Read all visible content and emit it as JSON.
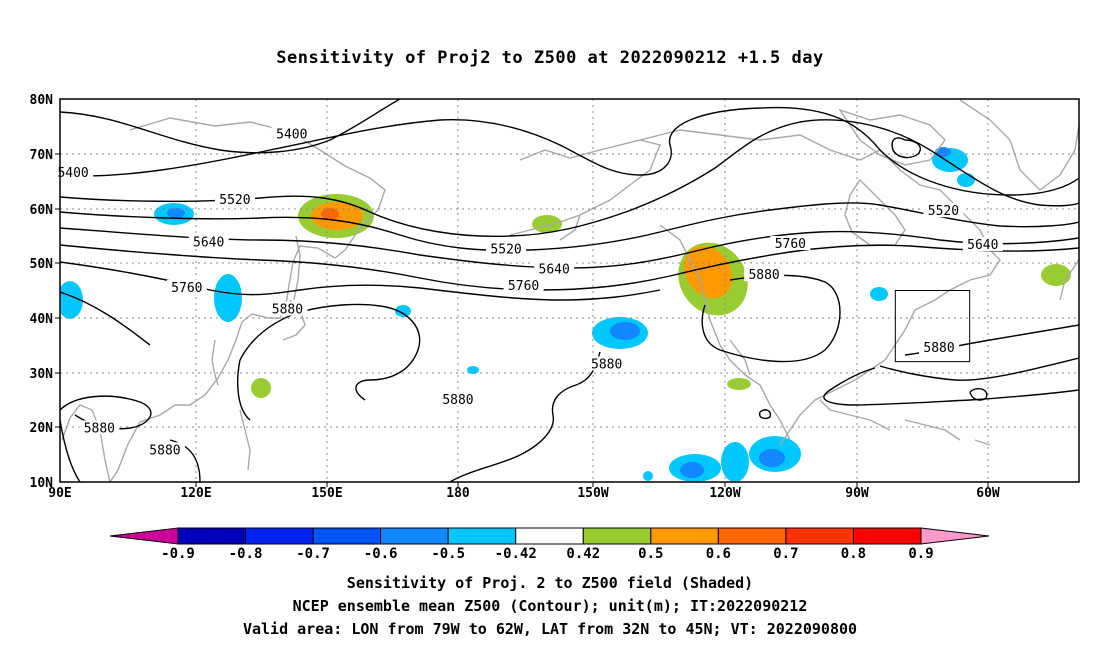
{
  "title": "Sensitivity of Proj2 to Z500 at 2022090212 +1.5 day",
  "map": {
    "lat_ticks": [
      "80N",
      "70N",
      "60N",
      "50N",
      "40N",
      "30N",
      "20N",
      "10N"
    ],
    "lon_ticks": [
      "90E",
      "120E",
      "150E",
      "180",
      "150W",
      "120W",
      "90W",
      "60W"
    ],
    "contour_labels": [
      {
        "text": "5400",
        "lon": 143,
        "lat": 73.5
      },
      {
        "text": "5400",
        "lon": 93,
        "lat": 66.5
      },
      {
        "text": "5520",
        "lon": 130,
        "lat": 61.5
      },
      {
        "text": "5520",
        "lon": 192,
        "lat": 52.5
      },
      {
        "text": "5520",
        "lon": 292,
        "lat": 59.5
      },
      {
        "text": "5640",
        "lon": 124,
        "lat": 53.8
      },
      {
        "text": "5640",
        "lon": 203,
        "lat": 48.8
      },
      {
        "text": "5640",
        "lon": 301,
        "lat": 53.3
      },
      {
        "text": "5760",
        "lon": 257,
        "lat": 53.5
      },
      {
        "text": "5760",
        "lon": 119,
        "lat": 45.5
      },
      {
        "text": "5760",
        "lon": 196,
        "lat": 45.8
      },
      {
        "text": "5880",
        "lon": 142,
        "lat": 41.5
      },
      {
        "text": "5880",
        "lon": 181,
        "lat": 25.0
      },
      {
        "text": "5880",
        "lon": 215,
        "lat": 31.5
      },
      {
        "text": "5880",
        "lon": 251,
        "lat": 47.8
      },
      {
        "text": "5880",
        "lon": 291,
        "lat": 34.5
      },
      {
        "text": "5880",
        "lon": 99,
        "lat": 19.8
      },
      {
        "text": "5880",
        "lon": 114,
        "lat": 15.8
      }
    ],
    "valid_box": {
      "lon_min": 281,
      "lon_max": 298,
      "lat_min": 32,
      "lat_max": 45
    }
  },
  "colorbar": {
    "labels": [
      "-0.9",
      "-0.8",
      "-0.7",
      "-0.6",
      "-0.5",
      "-0.42",
      "0.42",
      "0.5",
      "0.6",
      "0.7",
      "0.8",
      "0.9"
    ],
    "colors": [
      "#0000bb",
      "#0022ee",
      "#0055ff",
      "#1188ff",
      "#00c8ff",
      "#ffffff",
      "#99cc33",
      "#ff9900",
      "#ff6600",
      "#ff3300",
      "#ff0000"
    ],
    "low_end_color": "#cc0099",
    "high_end_color": "#ff99cc"
  },
  "captions": [
    "Sensitivity of Proj. 2 to Z500 field (Shaded)",
    "NCEP ensemble mean Z500 (Contour); unit(m); IT:2022090212",
    "Valid area: LON from 79W to 62W, LAT from 32N to 45N; VT: 2022090800"
  ]
}
